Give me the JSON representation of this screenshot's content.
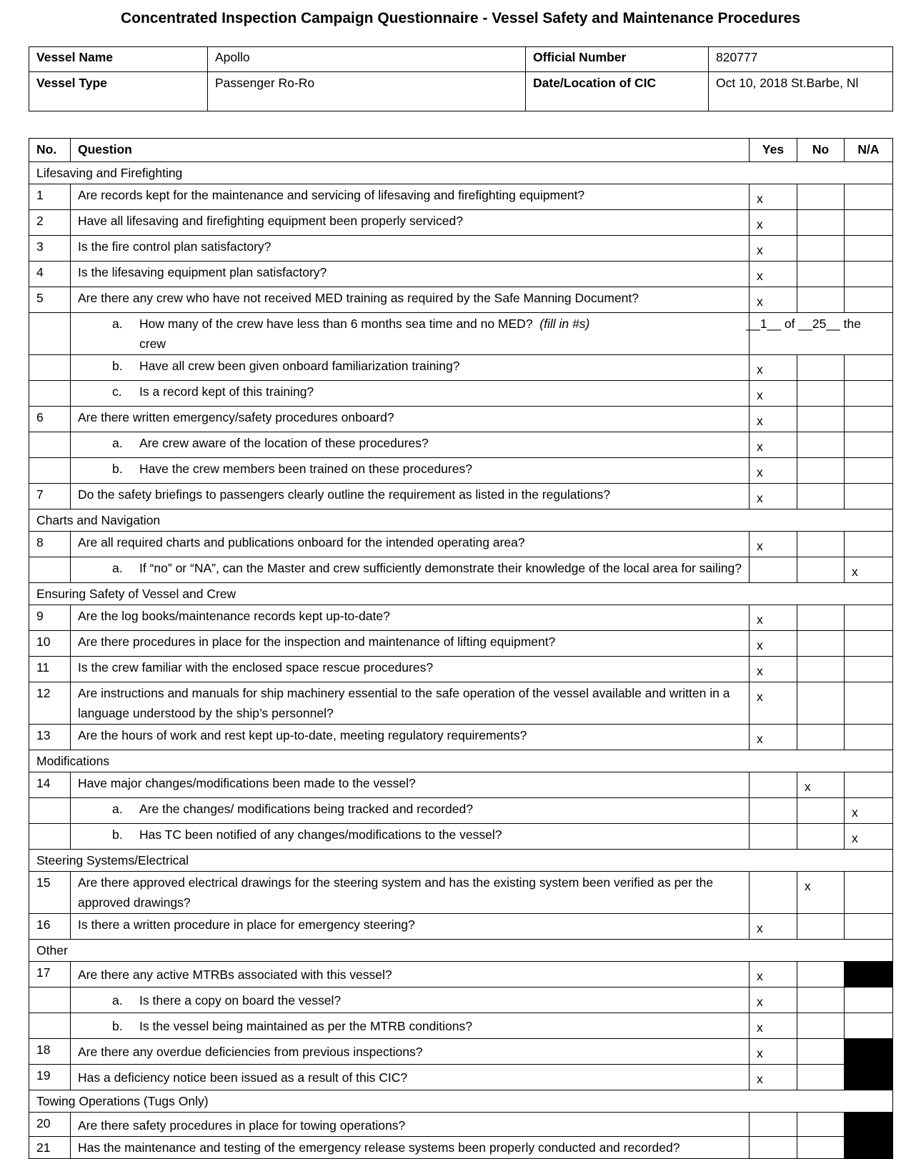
{
  "title": "Concentrated Inspection Campaign Questionnaire - Vessel Safety and Maintenance Procedures",
  "vessel_info": {
    "vessel_name_label": "Vessel Name",
    "vessel_name": "Apollo",
    "official_number_label": "Official Number",
    "official_number": "820777",
    "vessel_type_label": "Vessel Type",
    "vessel_type": "Passenger Ro-Ro",
    "date_location_label": "Date/Location of CIC",
    "date_location": "Oct 10, 2018 St.Barbe, Nl"
  },
  "headers": {
    "no": "No.",
    "question": "Question",
    "yes": "Yes",
    "no_col": "No",
    "na": "N/A"
  },
  "rows": [
    {
      "type": "section",
      "text": "Lifesaving and Firefighting"
    },
    {
      "type": "q",
      "no": "1",
      "text": "Are records kept for the maintenance and servicing of lifesaving and firefighting equipment?",
      "answer": "yes"
    },
    {
      "type": "q",
      "no": "2",
      "text": "Have all lifesaving and firefighting equipment been properly serviced?",
      "answer": "yes"
    },
    {
      "type": "q",
      "no": "3",
      "text": "Is the fire control plan satisfactory?",
      "answer": "yes"
    },
    {
      "type": "q",
      "no": "4",
      "text": "Is the lifesaving equipment plan satisfactory?",
      "answer": "yes"
    },
    {
      "type": "q",
      "no": "5",
      "text": "Are there any crew who have not received MED training as required by the Safe Manning Document?",
      "answer": "yes"
    },
    {
      "type": "fill",
      "letter": "a.",
      "text": "How many of the crew have less than 6 months sea time and no MED?",
      "note": "(fill in #s)",
      "count": "__1__",
      "of": "of",
      "total": "__25__",
      "tail": "the",
      "tail2": "crew"
    },
    {
      "type": "sub",
      "letter": "b.",
      "text": "Have all crew been given onboard familiarization training?",
      "answer": "yes"
    },
    {
      "type": "sub",
      "letter": "c.",
      "text": "Is a record kept of this training?",
      "answer": "yes"
    },
    {
      "type": "q",
      "no": "6",
      "text": "Are there written emergency/safety procedures onboard?",
      "answer": "yes"
    },
    {
      "type": "sub",
      "letter": "a.",
      "text": "Are crew aware of the location of these procedures?",
      "answer": "yes"
    },
    {
      "type": "sub",
      "letter": "b.",
      "text": "Have the crew members been trained on these procedures?",
      "answer": "yes"
    },
    {
      "type": "q",
      "no": "7",
      "text": "Do the safety briefings to passengers clearly outline the requirement as listed in the regulations?",
      "answer": "yes"
    },
    {
      "type": "section",
      "text": "Charts and Navigation"
    },
    {
      "type": "q",
      "no": "8",
      "text": "Are all required charts and publications onboard for the intended operating area?",
      "answer": "yes"
    },
    {
      "type": "sub",
      "letter": "a.",
      "text": "If “no” or “NA”, can the Master and crew sufficiently demonstrate their knowledge of the local area for sailing?",
      "answer": "na"
    },
    {
      "type": "section",
      "text": "Ensuring Safety of Vessel and Crew"
    },
    {
      "type": "q",
      "no": "9",
      "text": "Are the log books/maintenance records kept up-to-date?",
      "answer": "yes"
    },
    {
      "type": "q",
      "no": "10",
      "text": "Are there procedures in place for the inspection and maintenance of lifting equipment?",
      "answer": "yes"
    },
    {
      "type": "q",
      "no": "11",
      "text": "Is the crew familiar with the enclosed space rescue procedures?",
      "answer": "yes"
    },
    {
      "type": "q",
      "no": "12",
      "text": "Are instructions and manuals for ship machinery essential to the safe operation of the vessel available and written in a language understood by the ship’s personnel?",
      "answer": "yes"
    },
    {
      "type": "q",
      "no": "13",
      "text": "Are the hours of work and rest kept up-to-date, meeting regulatory requirements?",
      "answer": "yes"
    },
    {
      "type": "section",
      "text": "Modifications"
    },
    {
      "type": "q",
      "no": "14",
      "text": "Have major changes/modifications been made to the vessel?",
      "answer": "no"
    },
    {
      "type": "sub",
      "letter": "a.",
      "text": "Are the changes/ modifications being tracked and recorded?",
      "answer": "na"
    },
    {
      "type": "sub",
      "letter": "b.",
      "text": "Has TC been notified of any changes/modifications to the vessel?",
      "answer": "na"
    },
    {
      "type": "section",
      "text": "Steering Systems/Electrical"
    },
    {
      "type": "q",
      "no": "15",
      "text": "Are there approved electrical drawings for the steering system and has the existing system been verified as per the approved drawings?",
      "answer": "no"
    },
    {
      "type": "q",
      "no": "16",
      "text": "Is there a written procedure in place for emergency steering?",
      "answer": "yes"
    },
    {
      "type": "section",
      "text": "Other"
    },
    {
      "type": "q",
      "no": "17",
      "text": "Are there any active MTRBs associated with this vessel?",
      "answer": "yes",
      "na_blocked": true,
      "tall": true
    },
    {
      "type": "sub",
      "letter": "a.",
      "text": "Is there a copy on board the vessel?",
      "answer": "yes",
      "tall": true
    },
    {
      "type": "sub",
      "letter": "b.",
      "text": "Is the vessel being maintained as per the MTRB conditions?",
      "answer": "yes",
      "tall": true
    },
    {
      "type": "q",
      "no": "18",
      "text": "Are there any overdue deficiencies from previous inspections?",
      "answer": "yes",
      "na_blocked": true,
      "tall": true
    },
    {
      "type": "q",
      "no": "19",
      "text": "Has a deficiency notice been issued as a result of this CIC?",
      "answer": "yes",
      "na_blocked": true,
      "tall": true
    },
    {
      "type": "section",
      "text": "Towing Operations (Tugs Only)"
    },
    {
      "type": "q",
      "no": "20",
      "text": "Are there safety procedures in place for towing operations?",
      "answer": "",
      "na_blocked": true,
      "tall": true
    },
    {
      "type": "q",
      "no": "21",
      "text": "Has the maintenance and testing of the emergency release systems been properly conducted and recorded?",
      "answer": "",
      "na_blocked": true
    }
  ],
  "mark": "x"
}
